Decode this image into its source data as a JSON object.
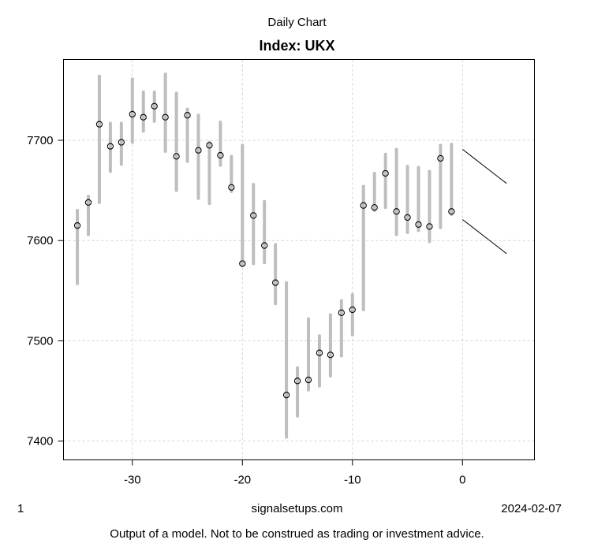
{
  "page": {
    "footer": {
      "page_number": "1",
      "source": "signalsetups.com",
      "date": "2024-02-07"
    },
    "disclaimer": "Output of a model. Not to be construed as trading or investment advice."
  },
  "chart_data": {
    "type": "hilo",
    "title": "Daily Chart",
    "subtitle": "Index: UKX",
    "xlabel": "",
    "ylabel": "",
    "x_axis": {
      "ticks": [
        -30,
        -20,
        -10,
        0
      ],
      "range": [
        -36.2,
        6.6
      ]
    },
    "y_axis": {
      "ticks": [
        7400,
        7500,
        7600,
        7700
      ],
      "range": [
        7381,
        7781
      ]
    },
    "grid": true,
    "legend": null,
    "series": [
      {
        "name": "daily high-low range with close marker",
        "marker": "open-circle",
        "points": [
          {
            "x": -35,
            "low": 7557,
            "high": 7630,
            "close": 7615
          },
          {
            "x": -34,
            "low": 7606,
            "high": 7644,
            "close": 7638
          },
          {
            "x": -33,
            "low": 7638,
            "high": 7764,
            "close": 7716
          },
          {
            "x": -32,
            "low": 7669,
            "high": 7717,
            "close": 7694
          },
          {
            "x": -31,
            "low": 7676,
            "high": 7717,
            "close": 7698
          },
          {
            "x": -30,
            "low": 7698,
            "high": 7761,
            "close": 7726
          },
          {
            "x": -29,
            "low": 7709,
            "high": 7748,
            "close": 7723
          },
          {
            "x": -28,
            "low": 7719,
            "high": 7748,
            "close": 7734
          },
          {
            "x": -27,
            "low": 7689,
            "high": 7766,
            "close": 7723
          },
          {
            "x": -26,
            "low": 7650,
            "high": 7747,
            "close": 7684
          },
          {
            "x": -25,
            "low": 7679,
            "high": 7731,
            "close": 7725
          },
          {
            "x": -24,
            "low": 7642,
            "high": 7725,
            "close": 7690
          },
          {
            "x": -23,
            "low": 7637,
            "high": 7698,
            "close": 7695
          },
          {
            "x": -22,
            "low": 7675,
            "high": 7718,
            "close": 7685
          },
          {
            "x": -21,
            "low": 7649,
            "high": 7684,
            "close": 7653
          },
          {
            "x": -20,
            "low": 7575,
            "high": 7695,
            "close": 7577
          },
          {
            "x": -19,
            "low": 7577,
            "high": 7656,
            "close": 7625
          },
          {
            "x": -18,
            "low": 7578,
            "high": 7639,
            "close": 7595
          },
          {
            "x": -17,
            "low": 7537,
            "high": 7596,
            "close": 7558
          },
          {
            "x": -16,
            "low": 7404,
            "high": 7558,
            "close": 7446
          },
          {
            "x": -15,
            "low": 7425,
            "high": 7473,
            "close": 7460
          },
          {
            "x": -14,
            "low": 7451,
            "high": 7522,
            "close": 7461
          },
          {
            "x": -13,
            "low": 7455,
            "high": 7505,
            "close": 7488
          },
          {
            "x": -12,
            "low": 7465,
            "high": 7526,
            "close": 7486
          },
          {
            "x": -11,
            "low": 7485,
            "high": 7540,
            "close": 7528
          },
          {
            "x": -10,
            "low": 7506,
            "high": 7546,
            "close": 7531
          },
          {
            "x": -9,
            "low": 7531,
            "high": 7654,
            "close": 7635
          },
          {
            "x": -8,
            "low": 7630,
            "high": 7667,
            "close": 7633
          },
          {
            "x": -7,
            "low": 7633,
            "high": 7686,
            "close": 7667
          },
          {
            "x": -6,
            "low": 7606,
            "high": 7691,
            "close": 7629
          },
          {
            "x": -5,
            "low": 7608,
            "high": 7674,
            "close": 7623
          },
          {
            "x": -4,
            "low": 7610,
            "high": 7673,
            "close": 7616
          },
          {
            "x": -3,
            "low": 7599,
            "high": 7669,
            "close": 7614
          },
          {
            "x": -2,
            "low": 7613,
            "high": 7695,
            "close": 7682
          },
          {
            "x": -1,
            "low": 7626,
            "high": 7696,
            "close": 7629
          }
        ]
      }
    ],
    "forecast_lines": [
      {
        "name": "upper projection",
        "points": [
          [
            0,
            7691
          ],
          [
            1,
            7682.5
          ],
          [
            2,
            7674
          ],
          [
            3,
            7665.5
          ],
          [
            4,
            7657
          ]
        ]
      },
      {
        "name": "lower projection",
        "points": [
          [
            0,
            7621
          ],
          [
            1,
            7612.5
          ],
          [
            2,
            7604
          ],
          [
            3,
            7595.5
          ],
          [
            4,
            7587
          ]
        ]
      }
    ],
    "colors": {
      "bar": "#bebebe",
      "close_marker": "#000000",
      "grid": "#d3d3d3",
      "forecast": "#000000",
      "axis": "#000000",
      "background": "#ffffff"
    }
  }
}
